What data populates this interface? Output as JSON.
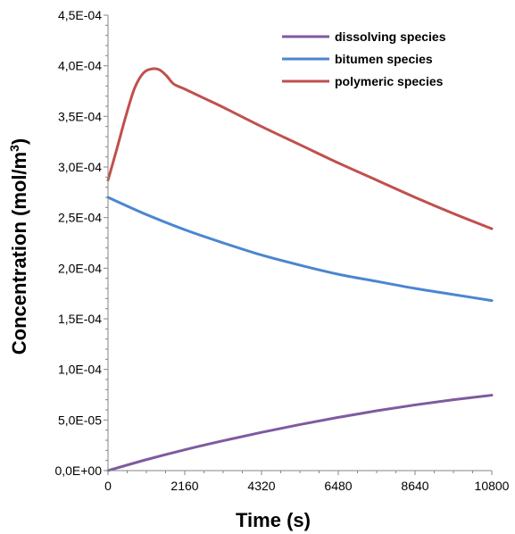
{
  "chart_data": {
    "type": "line",
    "xlabel": "Time (s)",
    "ylabel": "Concentration (mol/m³)",
    "ylabel_main": "Concentration (mol/m",
    "ylabel_sup": "3",
    "ylabel_end": ")",
    "xlim": [
      0,
      10800
    ],
    "ylim": [
      0,
      0.00045
    ],
    "xticks": [
      0,
      2160,
      4320,
      6480,
      8640,
      10800
    ],
    "xtick_labels": [
      "0",
      "2160",
      "4320",
      "6480",
      "8640",
      "10800"
    ],
    "yticks": [
      0,
      5e-05,
      0.0001,
      0.00015,
      0.0002,
      0.00025,
      0.0003,
      0.00035,
      0.0004,
      0.00045
    ],
    "ytick_labels": [
      "0,0E+00",
      "5,0E-05",
      "1,0E-04",
      "1,5E-04",
      "2,0E-04",
      "2,5E-04",
      "3,0E-04",
      "3,5E-04",
      "4,0E-04",
      "4,5E-04"
    ],
    "grid": false,
    "legend_position": "top-right",
    "series": [
      {
        "name": "dissolving species",
        "color": "#7f5aa0",
        "x": [
          0,
          1080,
          2160,
          3240,
          4320,
          5400,
          6480,
          7560,
          8640,
          9720,
          10800
        ],
        "y": [
          0,
          1.08e-05,
          2.06e-05,
          2.95e-05,
          3.78e-05,
          4.55e-05,
          5.26e-05,
          5.91e-05,
          6.49e-05,
          7e-05,
          7.45e-05
        ]
      },
      {
        "name": "bitumen species",
        "color": "#4a86d1",
        "x": [
          0,
          1080,
          2160,
          3240,
          4320,
          5400,
          6480,
          7560,
          8640,
          9720,
          10800
        ],
        "y": [
          0.00027,
          0.000253,
          0.000238,
          0.000225,
          0.000213,
          0.000203,
          0.000194,
          0.000187,
          0.00018,
          0.000174,
          0.000168
        ]
      },
      {
        "name": "polymeric species",
        "color": "#c0504d",
        "x": [
          0,
          250,
          500,
          750,
          1000,
          1250,
          1450,
          1650,
          1850,
          2160,
          2700,
          3240,
          4320,
          5400,
          6480,
          7560,
          8640,
          9720,
          10800
        ],
        "y": [
          0.000287,
          0.000318,
          0.00035,
          0.000378,
          0.000393,
          0.000397,
          0.000396,
          0.00039,
          0.000382,
          0.000377,
          0.000368,
          0.000359,
          0.00034,
          0.000322,
          0.000304,
          0.000287,
          0.00027,
          0.000254,
          0.000239
        ]
      }
    ]
  }
}
